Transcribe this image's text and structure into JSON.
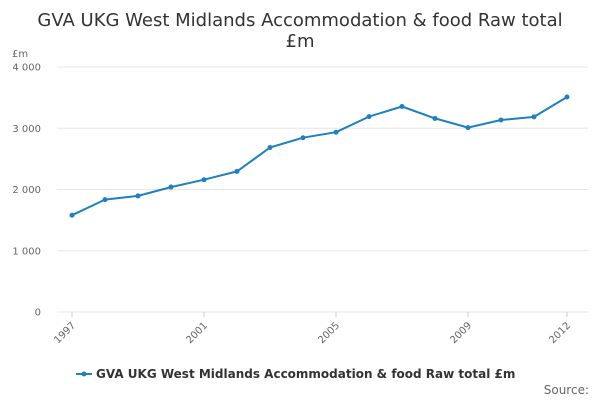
{
  "chart_data": {
    "type": "line",
    "title_lines": [
      "GVA UKG West Midlands Accommodation & food Raw total",
      "£m"
    ],
    "ylabel": "£m",
    "ylim": [
      0,
      4000
    ],
    "yticks": [
      0,
      1000,
      2000,
      3000,
      4000
    ],
    "ytick_labels": [
      "0",
      "1 000",
      "2 000",
      "3 000",
      "4 000"
    ],
    "x": [
      1997,
      1998,
      1999,
      2000,
      2001,
      2002,
      2003,
      2004,
      2005,
      2006,
      2007,
      2008,
      2009,
      2010,
      2011,
      2012
    ],
    "xticks": [
      1997,
      2001,
      2005,
      2009,
      2012
    ],
    "xtick_labels": [
      "1997",
      "2001",
      "2005",
      "2009",
      "2012"
    ],
    "series": [
      {
        "name": "GVA UKG West Midlands Accommodation & food Raw total £m",
        "color": "#1f7fbf",
        "values": [
          1580,
          1835,
          1895,
          2040,
          2160,
          2295,
          2685,
          2845,
          2935,
          3190,
          3355,
          3160,
          3010,
          3135,
          3185,
          3510
        ]
      }
    ],
    "legend": "bottom-center",
    "grid": true
  },
  "footer": {
    "source_label": "Source:"
  }
}
